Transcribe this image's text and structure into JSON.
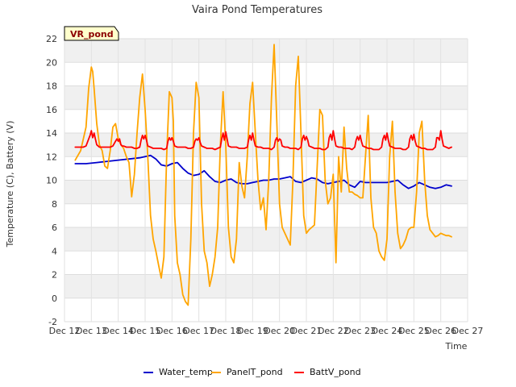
{
  "chart_data": {
    "type": "line",
    "title": "Vaira Pond Temperatures",
    "badge": "VR_pond",
    "xlabel": "Time",
    "ylabel": "Temperature (C), Battery (V)",
    "xlim": [
      12,
      27
    ],
    "ylim": [
      -2,
      22
    ],
    "x_ticks": [
      12,
      13,
      14,
      15,
      16,
      17,
      18,
      19,
      20,
      21,
      22,
      23,
      24,
      25,
      26,
      27
    ],
    "x_tick_labels": [
      "Dec 12",
      "Dec 13",
      "Dec 14",
      "Dec 15",
      "Dec 16",
      "Dec 17",
      "Dec 18",
      "Dec 19",
      "Dec 20",
      "Dec 21",
      "Dec 22",
      "Dec 23",
      "Dec 24",
      "Dec 25",
      "Dec 26",
      "Dec 27"
    ],
    "y_ticks": [
      -2,
      0,
      2,
      4,
      6,
      8,
      10,
      12,
      14,
      16,
      18,
      20,
      22
    ],
    "y_tick_labels": [
      "-2",
      "0",
      "2",
      "4",
      "6",
      "8",
      "10",
      "12",
      "14",
      "16",
      "18",
      "20",
      "22"
    ],
    "grid": true,
    "legend_position": "bottom",
    "series": [
      {
        "name": "Water_temp",
        "color": "#0000cc",
        "x": [
          12.4,
          12.8,
          13.2,
          13.6,
          14.0,
          14.4,
          14.8,
          15.0,
          15.2,
          15.4,
          15.6,
          15.8,
          16.0,
          16.2,
          16.4,
          16.6,
          16.8,
          17.0,
          17.2,
          17.4,
          17.6,
          17.8,
          18.0,
          18.2,
          18.4,
          18.6,
          18.8,
          19.0,
          19.2,
          19.4,
          19.6,
          19.8,
          20.0,
          20.2,
          20.4,
          20.6,
          20.8,
          21.0,
          21.2,
          21.4,
          21.6,
          21.8,
          22.0,
          22.2,
          22.4,
          22.6,
          22.8,
          23.0,
          23.2,
          23.4,
          23.6,
          23.8,
          24.0,
          24.2,
          24.4,
          24.6,
          24.8,
          25.0,
          25.2,
          25.4,
          25.6,
          25.8,
          26.0,
          26.2,
          26.4
        ],
        "y": [
          11.4,
          11.4,
          11.5,
          11.6,
          11.7,
          11.8,
          11.9,
          12.0,
          12.1,
          11.8,
          11.3,
          11.2,
          11.4,
          11.5,
          11.0,
          10.6,
          10.4,
          10.5,
          10.8,
          10.3,
          9.9,
          9.8,
          10.0,
          10.1,
          9.8,
          9.7,
          9.7,
          9.8,
          9.9,
          10.0,
          10.0,
          10.1,
          10.1,
          10.2,
          10.3,
          9.9,
          9.8,
          10.0,
          10.2,
          10.1,
          9.8,
          9.7,
          9.8,
          9.9,
          10.0,
          9.6,
          9.4,
          9.9,
          9.8,
          9.8,
          9.8,
          9.8,
          9.8,
          9.9,
          10.0,
          9.6,
          9.3,
          9.5,
          9.8,
          9.6,
          9.4,
          9.3,
          9.4,
          9.6,
          9.5
        ]
      },
      {
        "name": "PanelT_pond",
        "color": "#ffa500",
        "x": [
          12.4,
          12.6,
          12.8,
          12.9,
          13.0,
          13.05,
          13.1,
          13.2,
          13.3,
          13.4,
          13.5,
          13.6,
          13.7,
          13.8,
          13.9,
          14.0,
          14.1,
          14.2,
          14.3,
          14.4,
          14.5,
          14.6,
          14.7,
          14.8,
          14.9,
          15.0,
          15.1,
          15.2,
          15.3,
          15.4,
          15.5,
          15.6,
          15.7,
          15.8,
          15.9,
          16.0,
          16.05,
          16.1,
          16.2,
          16.3,
          16.4,
          16.5,
          16.6,
          16.7,
          16.8,
          16.9,
          17.0,
          17.1,
          17.2,
          17.3,
          17.4,
          17.5,
          17.6,
          17.7,
          17.8,
          17.9,
          18.0,
          18.1,
          18.2,
          18.3,
          18.4,
          18.5,
          18.6,
          18.7,
          18.8,
          18.9,
          19.0,
          19.1,
          19.2,
          19.3,
          19.4,
          19.5,
          19.6,
          19.7,
          19.8,
          19.9,
          20.0,
          20.1,
          20.2,
          20.3,
          20.4,
          20.5,
          20.6,
          20.7,
          20.8,
          20.9,
          21.0,
          21.1,
          21.2,
          21.3,
          21.4,
          21.5,
          21.6,
          21.7,
          21.8,
          21.9,
          22.0,
          22.1,
          22.2,
          22.3,
          22.4,
          22.5,
          22.6,
          22.7,
          22.8,
          22.9,
          23.0,
          23.1,
          23.2,
          23.3,
          23.4,
          23.5,
          23.6,
          23.7,
          23.8,
          23.9,
          24.0,
          24.1,
          24.2,
          24.3,
          24.4,
          24.5,
          24.6,
          24.7,
          24.8,
          24.9,
          25.0,
          25.1,
          25.2,
          25.3,
          25.4,
          25.5,
          25.6,
          25.7,
          25.8,
          25.9,
          26.0,
          26.1,
          26.2,
          26.3,
          26.4
        ],
        "y": [
          11.7,
          12.5,
          14.5,
          17.8,
          19.6,
          19.2,
          17.8,
          14.8,
          13.0,
          12.5,
          11.2,
          11.0,
          12.5,
          14.5,
          14.8,
          13.5,
          13.0,
          12.7,
          12.0,
          11.5,
          8.6,
          10.5,
          14.0,
          17.0,
          19.0,
          16.0,
          12.0,
          7.0,
          5.0,
          4.0,
          2.8,
          1.7,
          3.5,
          12.0,
          17.5,
          17.0,
          15.0,
          7.0,
          3.0,
          2.0,
          0.3,
          -0.3,
          -0.6,
          5.0,
          14.0,
          18.3,
          17.0,
          8.0,
          4.0,
          3.0,
          1.0,
          2.0,
          3.5,
          6.0,
          13.0,
          17.5,
          13.0,
          6.0,
          3.5,
          3.0,
          5.0,
          11.5,
          9.5,
          8.5,
          12.0,
          16.5,
          18.3,
          14.0,
          10.0,
          7.5,
          8.5,
          5.8,
          10.0,
          17.0,
          21.5,
          15.0,
          8.0,
          6.0,
          5.5,
          5.0,
          4.5,
          10.0,
          18.0,
          20.5,
          14.0,
          7.0,
          5.5,
          5.8,
          6.0,
          6.2,
          11.0,
          16.0,
          15.5,
          10.0,
          8.0,
          8.5,
          10.5,
          3.0,
          12.0,
          9.0,
          14.5,
          11.0,
          9.0,
          9.0,
          8.8,
          8.7,
          8.5,
          8.5,
          12.0,
          15.5,
          8.5,
          6.0,
          5.5,
          4.0,
          3.5,
          3.2,
          5.0,
          12.0,
          15.0,
          9.0,
          5.5,
          4.2,
          4.5,
          5.0,
          5.8,
          6.0,
          6.0,
          9.0,
          14.0,
          15.0,
          10.0,
          7.0,
          5.8,
          5.5,
          5.2,
          5.3,
          5.5,
          5.4,
          5.3,
          5.3,
          5.2
        ]
      },
      {
        "name": "BattV_pond",
        "color": "#ff0000",
        "x": [
          12.4,
          12.5,
          12.6,
          12.7,
          12.8,
          12.9,
          12.95,
          13.0,
          13.05,
          13.1,
          13.15,
          13.2,
          13.25,
          13.3,
          13.4,
          13.5,
          13.6,
          13.7,
          13.8,
          13.9,
          13.95,
          14.0,
          14.05,
          14.1,
          14.15,
          14.2,
          14.3,
          14.4,
          14.5,
          14.6,
          14.7,
          14.8,
          14.85,
          14.9,
          14.95,
          15.0,
          15.05,
          15.1,
          15.2,
          15.3,
          15.4,
          15.5,
          15.6,
          15.7,
          15.8,
          15.85,
          15.9,
          15.95,
          16.0,
          16.05,
          16.1,
          16.2,
          16.3,
          16.4,
          16.5,
          16.6,
          16.7,
          16.8,
          16.85,
          16.9,
          16.95,
          17.0,
          17.05,
          17.1,
          17.2,
          17.3,
          17.4,
          17.5,
          17.6,
          17.7,
          17.8,
          17.85,
          17.9,
          17.95,
          18.0,
          18.05,
          18.1,
          18.2,
          18.3,
          18.4,
          18.5,
          18.6,
          18.7,
          18.8,
          18.85,
          18.9,
          18.95,
          19.0,
          19.05,
          19.1,
          19.2,
          19.3,
          19.4,
          19.5,
          19.6,
          19.7,
          19.8,
          19.85,
          19.9,
          19.95,
          20.0,
          20.05,
          20.1,
          20.2,
          20.3,
          20.4,
          20.5,
          20.6,
          20.7,
          20.8,
          20.85,
          20.9,
          20.95,
          21.0,
          21.05,
          21.1,
          21.2,
          21.3,
          21.4,
          21.5,
          21.6,
          21.7,
          21.8,
          21.85,
          21.9,
          21.95,
          22.0,
          22.05,
          22.1,
          22.2,
          22.3,
          22.4,
          22.5,
          22.6,
          22.7,
          22.8,
          22.85,
          22.9,
          22.95,
          23.0,
          23.05,
          23.1,
          23.2,
          23.3,
          23.4,
          23.5,
          23.6,
          23.7,
          23.8,
          23.85,
          23.9,
          23.95,
          24.0,
          24.05,
          24.1,
          24.2,
          24.3,
          24.4,
          24.5,
          24.6,
          24.7,
          24.8,
          24.85,
          24.9,
          24.95,
          25.0,
          25.05,
          25.1,
          25.2,
          25.3,
          25.4,
          25.5,
          25.6,
          25.7,
          25.8,
          25.85,
          25.9,
          25.95,
          26.0,
          26.05,
          26.1,
          26.2,
          26.3,
          26.4
        ],
        "y": [
          12.8,
          12.8,
          12.8,
          12.8,
          12.9,
          13.5,
          13.8,
          14.2,
          13.6,
          14.0,
          13.5,
          13.0,
          12.9,
          12.8,
          12.8,
          12.8,
          12.8,
          12.8,
          12.9,
          13.3,
          13.5,
          13.3,
          13.5,
          13.0,
          12.9,
          12.9,
          12.8,
          12.8,
          12.8,
          12.7,
          12.7,
          12.8,
          13.4,
          13.8,
          13.5,
          13.8,
          13.4,
          12.9,
          12.8,
          12.7,
          12.7,
          12.7,
          12.7,
          12.6,
          12.7,
          13.3,
          13.6,
          13.4,
          13.6,
          13.3,
          12.9,
          12.8,
          12.8,
          12.8,
          12.8,
          12.7,
          12.7,
          12.8,
          13.3,
          13.5,
          13.4,
          13.6,
          13.2,
          12.9,
          12.8,
          12.7,
          12.7,
          12.7,
          12.6,
          12.7,
          12.8,
          13.5,
          14.0,
          13.4,
          14.1,
          13.5,
          12.9,
          12.8,
          12.8,
          12.8,
          12.7,
          12.7,
          12.7,
          12.8,
          13.4,
          13.8,
          13.4,
          14.0,
          13.4,
          12.9,
          12.8,
          12.8,
          12.7,
          12.7,
          12.7,
          12.6,
          12.8,
          13.4,
          13.6,
          13.3,
          13.5,
          13.4,
          12.9,
          12.8,
          12.8,
          12.7,
          12.7,
          12.7,
          12.6,
          12.8,
          13.5,
          13.8,
          13.4,
          13.7,
          13.4,
          12.9,
          12.8,
          12.7,
          12.7,
          12.7,
          12.6,
          12.6,
          12.8,
          13.6,
          13.9,
          13.4,
          14.2,
          13.5,
          12.9,
          12.8,
          12.8,
          12.7,
          12.7,
          12.7,
          12.6,
          12.8,
          13.4,
          13.7,
          13.4,
          13.8,
          13.3,
          12.9,
          12.8,
          12.7,
          12.7,
          12.6,
          12.6,
          12.6,
          12.8,
          13.5,
          13.8,
          13.4,
          14.0,
          13.4,
          12.9,
          12.8,
          12.7,
          12.7,
          12.7,
          12.6,
          12.6,
          12.8,
          13.5,
          13.8,
          13.4,
          13.9,
          13.3,
          12.9,
          12.8,
          12.7,
          12.7,
          12.6,
          12.6,
          12.6,
          12.8,
          13.6,
          13.6,
          13.4,
          14.2,
          13.5,
          12.9,
          12.8,
          12.7,
          12.8
        ]
      }
    ]
  }
}
